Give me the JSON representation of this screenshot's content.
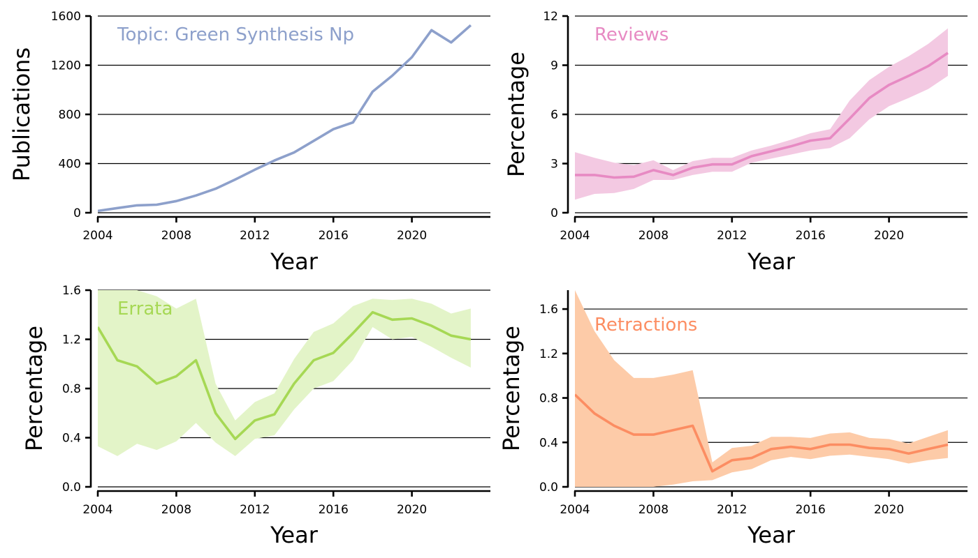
{
  "colors": {
    "topic": "#8da0cb",
    "reviews": "#e78ac3",
    "reviews_band": "#f3c9e2",
    "errata": "#a6d854",
    "errata_band": "#e3f4c8",
    "retractions": "#fc8d62",
    "retractions_band": "#fdcba8"
  },
  "chart_data": [
    {
      "type": "line",
      "annotation": "Topic: Green Synthesis Np",
      "xlabel": "Year",
      "ylabel": "Publications",
      "xlim": [
        2004,
        2024
      ],
      "ylim": [
        0,
        1600
      ],
      "xticks": [
        2004,
        2008,
        2012,
        2016,
        2020
      ],
      "yticks": [
        0,
        400,
        800,
        1200,
        1600
      ],
      "ytick_labels": [
        "0",
        "400",
        "800",
        "1200",
        "1600"
      ],
      "grid": "horizontal",
      "color_key": "topic",
      "band": false,
      "x": [
        2004,
        2005,
        2006,
        2007,
        2008,
        2009,
        2010,
        2011,
        2012,
        2013,
        2014,
        2015,
        2016,
        2017,
        2018,
        2019,
        2020,
        2021,
        2022,
        2023
      ],
      "y": [
        15,
        38,
        60,
        65,
        95,
        140,
        195,
        270,
        350,
        425,
        490,
        585,
        680,
        735,
        985,
        1115,
        1265,
        1485,
        1385,
        1525
      ]
    },
    {
      "type": "area",
      "annotation": "Reviews",
      "xlabel": "Year",
      "ylabel": "Percentage",
      "xlim": [
        2004,
        2024
      ],
      "ylim": [
        0,
        12
      ],
      "xticks": [
        2004,
        2008,
        2012,
        2016,
        2020
      ],
      "yticks": [
        0,
        3,
        6,
        9,
        12
      ],
      "ytick_labels": [
        "0",
        "3",
        "6",
        "9",
        "12"
      ],
      "grid": "horizontal",
      "color_key": "reviews",
      "band_color_key": "reviews_band",
      "band": true,
      "x": [
        2004,
        2005,
        2006,
        2007,
        2008,
        2009,
        2010,
        2011,
        2012,
        2013,
        2014,
        2015,
        2016,
        2017,
        2018,
        2019,
        2020,
        2021,
        2022,
        2023
      ],
      "y": [
        2.3,
        2.3,
        2.15,
        2.2,
        2.6,
        2.3,
        2.75,
        2.95,
        2.95,
        3.45,
        3.75,
        4.05,
        4.4,
        4.55,
        5.75,
        7.0,
        7.8,
        8.35,
        8.95,
        9.75
      ],
      "lower": [
        0.8,
        1.15,
        1.2,
        1.45,
        2.0,
        2.0,
        2.3,
        2.5,
        2.5,
        3.05,
        3.3,
        3.55,
        3.8,
        3.95,
        4.55,
        5.7,
        6.5,
        7.0,
        7.55,
        8.35
      ],
      "upper": [
        3.7,
        3.35,
        3.05,
        2.9,
        3.2,
        2.6,
        3.15,
        3.35,
        3.35,
        3.8,
        4.1,
        4.45,
        4.85,
        5.1,
        6.85,
        8.1,
        8.9,
        9.55,
        10.3,
        11.25
      ]
    },
    {
      "type": "area",
      "annotation": "Errata",
      "xlabel": "Year",
      "ylabel": "Percentage",
      "xlim": [
        2004,
        2024
      ],
      "ylim": [
        0,
        1.6
      ],
      "xticks": [
        2004,
        2008,
        2012,
        2016,
        2020
      ],
      "yticks": [
        0,
        0.4,
        0.8,
        1.2,
        1.6
      ],
      "ytick_labels": [
        "0.0",
        "0.4",
        "0.8",
        "1.2",
        "1.6"
      ],
      "grid": "horizontal",
      "color_key": "errata",
      "band_color_key": "errata_band",
      "band": true,
      "x": [
        2004,
        2005,
        2006,
        2007,
        2008,
        2009,
        2010,
        2011,
        2012,
        2013,
        2014,
        2015,
        2016,
        2017,
        2018,
        2019,
        2020,
        2021,
        2022,
        2023
      ],
      "y": [
        1.3,
        1.03,
        0.98,
        0.84,
        0.9,
        1.03,
        0.6,
        0.39,
        0.54,
        0.59,
        0.84,
        1.03,
        1.09,
        1.25,
        1.42,
        1.36,
        1.37,
        1.31,
        1.23,
        1.2
      ],
      "lower": [
        0.33,
        0.25,
        0.35,
        0.3,
        0.37,
        0.52,
        0.36,
        0.25,
        0.39,
        0.42,
        0.63,
        0.8,
        0.86,
        1.03,
        1.3,
        1.2,
        1.22,
        1.14,
        1.05,
        0.97
      ],
      "upper": [
        1.6,
        1.6,
        1.6,
        1.55,
        1.45,
        1.53,
        0.84,
        0.54,
        0.69,
        0.76,
        1.04,
        1.26,
        1.33,
        1.47,
        1.53,
        1.52,
        1.53,
        1.49,
        1.41,
        1.45
      ]
    },
    {
      "type": "area",
      "annotation": "Retractions",
      "xlabel": "Year",
      "ylabel": "Percentage",
      "xlim": [
        2004,
        2024
      ],
      "ylim": [
        0,
        1.77
      ],
      "xticks": [
        2004,
        2008,
        2012,
        2016,
        2020
      ],
      "yticks": [
        0,
        0.4,
        0.8,
        1.2,
        1.6
      ],
      "ytick_labels": [
        "0.0",
        "0.4",
        "0.8",
        "1.2",
        "1.6"
      ],
      "grid": "horizontal",
      "color_key": "retractions",
      "band_color_key": "retractions_band",
      "band": true,
      "x": [
        2004,
        2005,
        2006,
        2007,
        2008,
        2009,
        2010,
        2011,
        2012,
        2013,
        2014,
        2015,
        2016,
        2017,
        2018,
        2019,
        2020,
        2021,
        2022,
        2023
      ],
      "y": [
        0.83,
        0.66,
        0.55,
        0.47,
        0.47,
        0.51,
        0.55,
        0.14,
        0.24,
        0.26,
        0.34,
        0.36,
        0.34,
        0.38,
        0.38,
        0.35,
        0.34,
        0.3,
        0.34,
        0.38
      ],
      "lower": [
        0.0,
        0.0,
        0.0,
        0.0,
        0.0,
        0.02,
        0.05,
        0.06,
        0.13,
        0.16,
        0.24,
        0.27,
        0.25,
        0.28,
        0.29,
        0.27,
        0.25,
        0.21,
        0.24,
        0.26
      ],
      "upper": [
        1.77,
        1.4,
        1.14,
        0.98,
        0.98,
        1.01,
        1.05,
        0.22,
        0.35,
        0.37,
        0.45,
        0.45,
        0.44,
        0.48,
        0.49,
        0.44,
        0.43,
        0.39,
        0.45,
        0.51
      ]
    }
  ]
}
